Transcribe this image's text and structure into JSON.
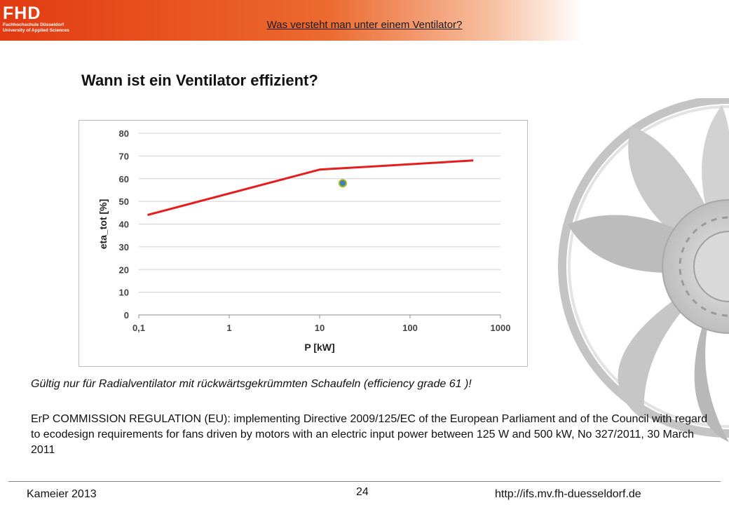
{
  "header": {
    "logo_mark": "FHD",
    "logo_line1": "Fachhochschule Düsseldorf",
    "logo_line2": "University of Applied Sciences",
    "title": "Was versteht man unter einem Ventilator?",
    "accent_color": "#e23a12"
  },
  "slide": {
    "title": "Wann ist ein Ventilator effizient?"
  },
  "chart_data": {
    "type": "line",
    "xlabel": "P [kW]",
    "ylabel": "eta_tot [%]",
    "x_scale": "log",
    "xlim": [
      0.1,
      1000
    ],
    "ylim": [
      0,
      80
    ],
    "x_ticks": [
      0.1,
      1,
      10,
      100,
      1000
    ],
    "x_tick_labels": [
      "0,1",
      "1",
      "10",
      "100",
      "1000"
    ],
    "y_ticks": [
      0,
      10,
      20,
      30,
      40,
      50,
      60,
      70,
      80
    ],
    "y_tick_labels": [
      "0",
      "10",
      "20",
      "30",
      "40",
      "50",
      "60",
      "70",
      "80"
    ],
    "grid": "horizontal",
    "legend": "none",
    "series": [
      {
        "type": "line",
        "color": "#e41e1e",
        "points": [
          [
            0.125,
            44
          ],
          [
            10,
            64
          ],
          [
            500,
            68
          ]
        ]
      },
      {
        "type": "scatter",
        "color": "#3f7fbf",
        "edge_color": "#a9b61a",
        "points": [
          [
            18,
            58
          ]
        ]
      }
    ]
  },
  "note": "Gültig nur für Radialventilator mit rückwärtsgekrümmten Schaufeln (efficiency grade 61 )!",
  "regulation": "ErP COMMISSION REGULATION (EU): implementing Directive 2009/125/EC of the European Parliament and of the Council with regard to ecodesign requirements for fans driven by motors with an electric input power between 125 W and 500 kW, No 327/2011, 30 March 2011",
  "footer": {
    "author": "Kameier 2013",
    "page": "24",
    "url": "http://ifs.mv.fh-duesseldorf.de"
  }
}
